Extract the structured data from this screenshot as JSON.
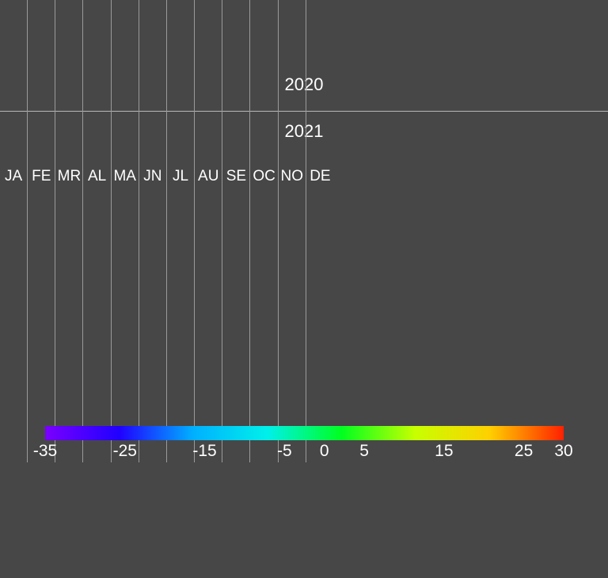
{
  "chart_data": {
    "type": "heatmap",
    "y_categories": [
      "2020",
      "2021"
    ],
    "x_categories": [
      "JA",
      "FE",
      "MR",
      "AL",
      "MA",
      "JN",
      "JL",
      "AU",
      "SE",
      "OC",
      "NO",
      "DE"
    ],
    "values": [],
    "colorbar": {
      "range": [
        -35,
        30
      ],
      "ticks": [
        -35,
        -25,
        -15,
        -5,
        0,
        5,
        15,
        25,
        30
      ],
      "tick_labels": [
        "-35",
        "-25",
        "-15",
        "-5",
        "0",
        "5",
        "15",
        "25",
        "30"
      ],
      "colors": [
        "#7a00ff",
        "#2000ff",
        "#00b0ff",
        "#00f0ea",
        "#00ff20",
        "#c8ff00",
        "#ffd000",
        "#ff2000"
      ]
    },
    "background": "#474747",
    "grid": true
  }
}
